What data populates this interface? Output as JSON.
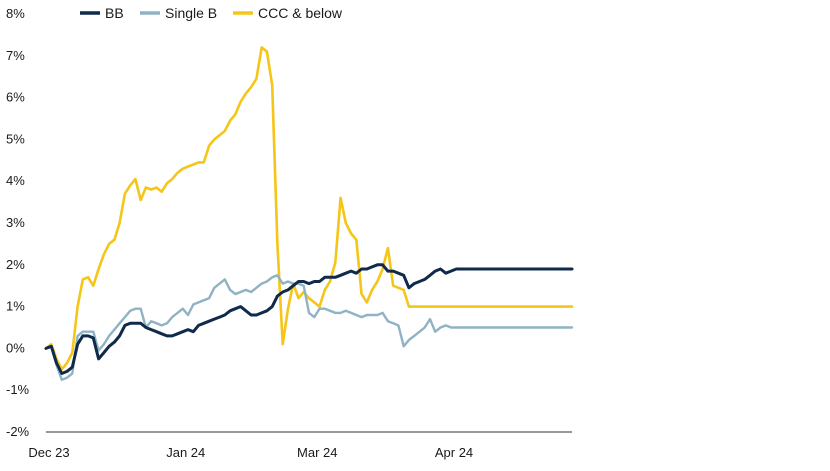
{
  "chart_data": {
    "type": "line",
    "title": "",
    "xlabel": "",
    "ylabel": "",
    "ylim": [
      -2,
      8
    ],
    "y_ticks": [
      -2,
      -1,
      0,
      1,
      2,
      3,
      4,
      5,
      6,
      7,
      8
    ],
    "y_tick_labels": [
      "-2%",
      "-1%",
      "0%",
      "1%",
      "2%",
      "3%",
      "4%",
      "5%",
      "6%",
      "7%",
      "8%"
    ],
    "x_range": [
      0,
      100
    ],
    "x_ticks": [
      0,
      26,
      51,
      77
    ],
    "x_tick_labels": [
      "Dec 23",
      "Jan 24",
      "Mar 24",
      "Apr 24"
    ],
    "grid": false,
    "legend_position": "top",
    "x": [
      0,
      1,
      2,
      3,
      4,
      5,
      6,
      7,
      8,
      9,
      10,
      11,
      12,
      13,
      14,
      15,
      16,
      17,
      18,
      19,
      20,
      21,
      22,
      23,
      24,
      25,
      26,
      27,
      28,
      29,
      30,
      31,
      32,
      33,
      34,
      35,
      36,
      37,
      38,
      39,
      40,
      41,
      42,
      43,
      44,
      45,
      46,
      47,
      48,
      49,
      50,
      51,
      52,
      53,
      54,
      55,
      56,
      57,
      58,
      59,
      60,
      61,
      62,
      63,
      64,
      65,
      66,
      67,
      68,
      69,
      70,
      71,
      72,
      73,
      74,
      75,
      76,
      77,
      78,
      79,
      80,
      81,
      82,
      83,
      84,
      85,
      86,
      87,
      88,
      89,
      90,
      91,
      92,
      93,
      94,
      95,
      96,
      97,
      98,
      99,
      100
    ],
    "series": [
      {
        "name": "BB",
        "color": "#0f2a4a",
        "values": [
          0,
          0.05,
          -0.35,
          -0.6,
          -0.55,
          -0.45,
          0.1,
          0.3,
          0.3,
          0.25,
          -0.25,
          -0.1,
          0.05,
          0.15,
          0.3,
          0.55,
          0.6,
          0.6,
          0.6,
          0.5,
          0.45,
          0.4,
          0.35,
          0.3,
          0.3,
          0.35,
          0.4,
          0.45,
          0.4,
          0.55,
          0.6,
          0.65,
          0.7,
          0.75,
          0.8,
          0.9,
          0.95,
          1.0,
          0.9,
          0.8,
          0.8,
          0.85,
          0.9,
          1.0,
          1.25,
          1.35,
          1.4,
          1.5,
          1.6,
          1.6,
          1.55,
          1.6,
          1.6,
          1.7,
          1.7,
          1.7,
          1.75,
          1.8,
          1.85,
          1.8,
          1.9,
          1.9,
          1.95,
          2.0,
          2.0,
          1.85,
          1.85,
          1.8,
          1.75,
          1.45,
          1.55,
          1.6,
          1.65,
          1.75,
          1.85,
          1.9,
          1.8,
          1.85,
          1.9,
          1.9,
          1.9,
          1.9,
          1.9,
          1.9,
          1.9,
          1.9,
          1.9,
          1.9,
          1.9,
          1.9,
          1.9,
          1.9,
          1.9,
          1.9,
          1.9,
          1.9,
          1.9,
          1.9,
          1.9,
          1.9,
          1.9
        ]
      },
      {
        "name": "Single B",
        "color": "#8fb3c4",
        "values": [
          0,
          0.05,
          -0.4,
          -0.75,
          -0.7,
          -0.6,
          0.3,
          0.4,
          0.4,
          0.4,
          -0.05,
          0.1,
          0.3,
          0.45,
          0.6,
          0.75,
          0.9,
          0.95,
          0.95,
          0.5,
          0.65,
          0.6,
          0.55,
          0.6,
          0.75,
          0.85,
          0.95,
          0.8,
          1.05,
          1.1,
          1.15,
          1.2,
          1.45,
          1.55,
          1.65,
          1.4,
          1.3,
          1.35,
          1.4,
          1.35,
          1.45,
          1.55,
          1.6,
          1.7,
          1.75,
          1.55,
          1.6,
          1.55,
          1.55,
          1.5,
          0.85,
          0.75,
          0.95,
          0.95,
          0.9,
          0.85,
          0.85,
          0.9,
          0.85,
          0.8,
          0.75,
          0.8,
          0.8,
          0.8,
          0.85,
          0.65,
          0.6,
          0.55,
          0.05,
          0.2,
          0.3,
          0.4,
          0.5,
          0.7,
          0.4,
          0.5,
          0.55,
          0.5,
          0.5,
          0.5,
          0.5,
          0.5,
          0.5,
          0.5,
          0.5,
          0.5,
          0.5,
          0.5,
          0.5,
          0.5,
          0.5,
          0.5,
          0.5,
          0.5,
          0.5,
          0.5,
          0.5,
          0.5,
          0.5,
          0.5,
          0.5
        ]
      },
      {
        "name": "CCC & below",
        "color": "#f5c518",
        "values": [
          0,
          0.1,
          -0.25,
          -0.5,
          -0.35,
          -0.1,
          1.0,
          1.65,
          1.7,
          1.5,
          1.9,
          2.25,
          2.5,
          2.6,
          3.0,
          3.7,
          3.9,
          4.05,
          3.55,
          3.85,
          3.8,
          3.85,
          3.75,
          3.95,
          4.05,
          4.2,
          4.3,
          4.35,
          4.4,
          4.45,
          4.45,
          4.85,
          5.0,
          5.1,
          5.2,
          5.45,
          5.6,
          5.9,
          6.1,
          6.25,
          6.45,
          7.2,
          7.1,
          6.3,
          2.5,
          0.1,
          0.95,
          1.55,
          1.2,
          1.35,
          1.2,
          1.1,
          1.0,
          1.4,
          1.6,
          2.05,
          3.6,
          3.0,
          2.75,
          2.6,
          1.3,
          1.1,
          1.4,
          1.6,
          1.9,
          2.4,
          1.5,
          1.45,
          1.4,
          1.0,
          1.0,
          1.0,
          1.0,
          1.0,
          1.0,
          1.0,
          1.0,
          1.0,
          1.0,
          1.0,
          1.0,
          1.0,
          1.0,
          1.0,
          1.0,
          1.0,
          1.0,
          1.0,
          1.0,
          1.0,
          1.0,
          1.0,
          1.0,
          1.0,
          1.0,
          1.0,
          1.0,
          1.0,
          1.0,
          1.0,
          1.0
        ]
      }
    ]
  }
}
